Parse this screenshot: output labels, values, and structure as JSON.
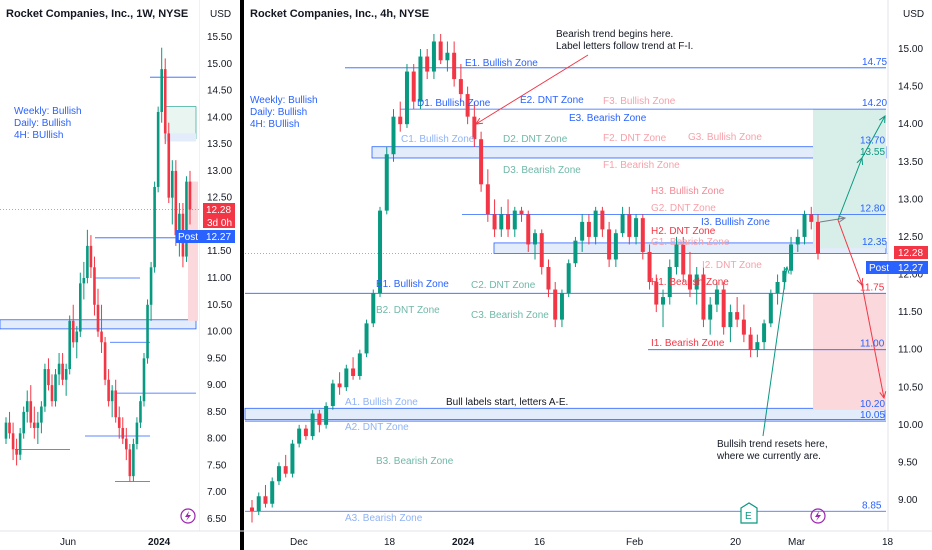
{
  "colors": {
    "up": "#089981",
    "down": "#f23645",
    "blue": "#2962ff",
    "zoneGreen": "#089981",
    "zonePink": "#f7a1a9",
    "price": "#f23645",
    "post": "#2962ff",
    "note": "#131722"
  },
  "left": {
    "title": "Rocket Companies, Inc., 1W, NYSE",
    "currency": "USD",
    "yticks": [
      "15.50",
      "15.00",
      "14.50",
      "14.00",
      "13.50",
      "13.00",
      "12.50",
      "12.00",
      "11.50",
      "11.00",
      "10.50",
      "10.00",
      "9.50",
      "9.00",
      "8.50",
      "8.00",
      "7.50",
      "7.00",
      "6.50"
    ],
    "xticks": [
      "Jun",
      "2024"
    ],
    "price_badge": "12.28",
    "countdown": "3d 0h",
    "post_label": "Post",
    "post_value": "12.27",
    "trend_notes": [
      "Weekly: Bullish",
      "Daily: Bullish",
      "4H: BUllish"
    ]
  },
  "right": {
    "title": "Rocket Companies, Inc., 4h, NYSE",
    "currency": "USD",
    "yticks": [
      "15.00",
      "14.50",
      "14.00",
      "13.50",
      "13.00",
      "12.50",
      "12.00",
      "11.50",
      "11.00",
      "10.50",
      "10.00",
      "9.50",
      "9.00"
    ],
    "xticks": [
      "Dec",
      "18",
      "2024",
      "16",
      "Feb",
      "20",
      "Mar",
      "18"
    ],
    "price_badge": "12.28",
    "post_label": "Post",
    "post_value": "12.27",
    "trend_notes": [
      "Weekly: Bullish",
      "Daily: Bullish",
      "4H: BUllish"
    ],
    "level_labels": [
      "14.75",
      "14.20",
      "13.70",
      "13.55",
      "12.80",
      "12.35",
      "11.75",
      "11.00",
      "10.20",
      "10.05",
      "8.85"
    ],
    "zone_labels": [
      {
        "id": "E1",
        "text": "E1. Bullish Zone"
      },
      {
        "id": "D1",
        "text": "D1. Bullish Zone"
      },
      {
        "id": "E2",
        "text": "E2. DNT Zone"
      },
      {
        "id": "F3",
        "text": "F3. Bullish Zone"
      },
      {
        "id": "E3",
        "text": "E3. Bearish Zone"
      },
      {
        "id": "C1",
        "text": "C1. Bullish Zone"
      },
      {
        "id": "D2",
        "text": "D2. DNT Zone"
      },
      {
        "id": "F2",
        "text": "F2. DNT Zone"
      },
      {
        "id": "G3",
        "text": "G3. Bullish Zone"
      },
      {
        "id": "F1",
        "text": "F1. Bearish Zone"
      },
      {
        "id": "D3",
        "text": "D3. Bearish Zone"
      },
      {
        "id": "H3",
        "text": "H3. Bullish Zone"
      },
      {
        "id": "G2",
        "text": "G2. DNT Zone"
      },
      {
        "id": "I3",
        "text": "I3. Bullish Zone"
      },
      {
        "id": "H2",
        "text": "H2. DNT Zone"
      },
      {
        "id": "G1",
        "text": "G1. Bearish Zone"
      },
      {
        "id": "I2",
        "text": "I2. DNT Zone"
      },
      {
        "id": "B1",
        "text": "B1. Bullish Zone"
      },
      {
        "id": "C2",
        "text": "C2. DNT Zone"
      },
      {
        "id": "H1",
        "text": "H1. Bearish Zone"
      },
      {
        "id": "B2",
        "text": "B2. DNT Zone"
      },
      {
        "id": "C3",
        "text": "C3. Bearish Zone"
      },
      {
        "id": "I1",
        "text": "I1. Bearish Zone"
      },
      {
        "id": "A1",
        "text": "A1. Bullish Zone"
      },
      {
        "id": "A2",
        "text": "A2. DNT Zone"
      },
      {
        "id": "B3",
        "text": "B3. Bearish Zone"
      },
      {
        "id": "A3",
        "text": "A3. Bearish Zone"
      }
    ],
    "notes": {
      "bearish_1": "Bearish trend begins here.",
      "bearish_2": "Label letters follow trend at F-I.",
      "bull_labels": "Bull labels start, letters A-E.",
      "reset_1": "Bullsih trend resets here,",
      "reset_2": "where we currently are."
    },
    "earnings_marker": "E"
  },
  "chart_data": [
    {
      "type": "candlestick",
      "title": "Rocket Companies, Inc., 1W, NYSE",
      "x_ticks": [
        "Jun",
        "2024"
      ],
      "ylim": [
        6.4,
        15.8
      ],
      "last_price": 12.28,
      "post_price": 12.27,
      "ohlc": [
        [
          8.0,
          8.4,
          7.9,
          8.3
        ],
        [
          8.3,
          8.5,
          8.0,
          8.1
        ],
        [
          8.1,
          8.3,
          7.6,
          7.8
        ],
        [
          7.8,
          8.0,
          7.5,
          7.7
        ],
        [
          7.7,
          8.2,
          7.6,
          8.1
        ],
        [
          8.1,
          8.6,
          8.0,
          8.5
        ],
        [
          8.5,
          8.9,
          8.3,
          8.7
        ],
        [
          8.7,
          9.0,
          8.2,
          8.3
        ],
        [
          8.3,
          8.6,
          8.0,
          8.2
        ],
        [
          8.2,
          8.5,
          7.9,
          8.3
        ],
        [
          8.3,
          8.7,
          8.1,
          8.6
        ],
        [
          8.6,
          9.4,
          8.5,
          9.3
        ],
        [
          9.3,
          9.5,
          8.9,
          9.0
        ],
        [
          9.0,
          9.2,
          8.6,
          8.7
        ],
        [
          8.7,
          9.3,
          8.6,
          9.2
        ],
        [
          9.2,
          9.6,
          9.0,
          9.4
        ],
        [
          9.4,
          9.6,
          9.0,
          9.1
        ],
        [
          9.1,
          9.4,
          8.8,
          9.3
        ],
        [
          9.3,
          10.3,
          9.2,
          10.2
        ],
        [
          10.2,
          10.5,
          9.7,
          9.8
        ],
        [
          9.8,
          10.1,
          9.5,
          10.0
        ],
        [
          10.0,
          11.1,
          9.9,
          10.9
        ],
        [
          10.9,
          11.3,
          10.6,
          11.0
        ],
        [
          11.0,
          11.9,
          10.9,
          11.6
        ],
        [
          11.6,
          11.8,
          11.0,
          11.2
        ],
        [
          11.2,
          11.4,
          10.3,
          10.5
        ],
        [
          10.5,
          10.8,
          9.9,
          10.0
        ],
        [
          10.0,
          10.5,
          9.6,
          9.8
        ],
        [
          9.8,
          9.9,
          9.0,
          9.1
        ],
        [
          9.1,
          9.3,
          8.6,
          8.7
        ],
        [
          8.7,
          9.0,
          8.4,
          8.9
        ],
        [
          8.9,
          9.1,
          8.3,
          8.4
        ],
        [
          8.4,
          8.6,
          8.0,
          8.2
        ],
        [
          8.2,
          8.4,
          7.9,
          8.0
        ],
        [
          8.0,
          8.2,
          7.6,
          7.8
        ],
        [
          7.8,
          7.9,
          7.2,
          7.3
        ],
        [
          7.3,
          8.0,
          7.2,
          7.9
        ],
        [
          7.9,
          8.4,
          7.8,
          8.3
        ],
        [
          8.3,
          8.8,
          8.2,
          8.7
        ],
        [
          8.7,
          9.6,
          8.6,
          9.5
        ],
        [
          9.5,
          10.6,
          9.4,
          10.5
        ],
        [
          10.5,
          11.3,
          10.2,
          11.2
        ],
        [
          11.2,
          12.8,
          11.1,
          12.7
        ],
        [
          12.7,
          14.2,
          12.6,
          14.1
        ],
        [
          14.1,
          15.3,
          13.9,
          14.9
        ],
        [
          14.9,
          15.1,
          13.5,
          13.7
        ],
        [
          13.7,
          13.9,
          12.4,
          12.5
        ],
        [
          12.5,
          13.2,
          12.0,
          13.0
        ],
        [
          13.0,
          13.2,
          11.6,
          11.8
        ],
        [
          11.8,
          12.4,
          11.4,
          12.2
        ],
        [
          12.2,
          12.4,
          11.2,
          11.4
        ],
        [
          11.4,
          12.9,
          11.3,
          12.8
        ],
        [
          12.8,
          13.0,
          12.0,
          12.28
        ]
      ]
    },
    {
      "type": "candlestick",
      "title": "Rocket Companies, Inc., 4h, NYSE",
      "x_ticks": [
        "Dec",
        "18",
        "2024",
        "16",
        "Feb",
        "20",
        "Mar",
        "18"
      ],
      "ylim": [
        8.65,
        15.45
      ],
      "last_price": 12.28,
      "post_price": 12.27,
      "levels": [
        14.75,
        14.2,
        13.7,
        13.55,
        12.8,
        12.35,
        11.75,
        11.0,
        10.2,
        10.05,
        8.85
      ],
      "zones": [
        {
          "name": "A1. Bullish Zone",
          "low": 10.05,
          "high": 10.2
        },
        {
          "name": "B1. Bullish Zone",
          "low": 11.75,
          "high": 11.75
        },
        {
          "name": "C1. Bullish Zone",
          "low": 13.55,
          "high": 13.7
        },
        {
          "name": "G1. Bearish Zone",
          "low": 12.28,
          "high": 12.42
        }
      ],
      "ohlc": [
        [
          8.9,
          9.0,
          8.7,
          8.85
        ],
        [
          8.85,
          9.1,
          8.8,
          9.05
        ],
        [
          9.05,
          9.2,
          8.9,
          8.95
        ],
        [
          8.95,
          9.3,
          8.9,
          9.25
        ],
        [
          9.25,
          9.5,
          9.2,
          9.45
        ],
        [
          9.45,
          9.6,
          9.3,
          9.35
        ],
        [
          9.35,
          9.8,
          9.3,
          9.75
        ],
        [
          9.75,
          10.0,
          9.7,
          9.95
        ],
        [
          9.95,
          10.0,
          9.8,
          9.85
        ],
        [
          9.85,
          10.2,
          9.8,
          10.15
        ],
        [
          10.15,
          10.2,
          9.9,
          10.0
        ],
        [
          10.0,
          10.3,
          9.95,
          10.25
        ],
        [
          10.25,
          10.6,
          10.2,
          10.55
        ],
        [
          10.55,
          10.7,
          10.4,
          10.5
        ],
        [
          10.5,
          10.8,
          10.45,
          10.75
        ],
        [
          10.75,
          10.9,
          10.6,
          10.65
        ],
        [
          10.65,
          11.0,
          10.6,
          10.95
        ],
        [
          10.95,
          11.4,
          10.9,
          11.35
        ],
        [
          11.35,
          11.8,
          11.3,
          11.75
        ],
        [
          11.75,
          12.9,
          11.7,
          12.85
        ],
        [
          12.85,
          13.7,
          12.8,
          13.6
        ],
        [
          13.6,
          14.2,
          13.5,
          14.1
        ],
        [
          14.1,
          14.3,
          13.9,
          14.0
        ],
        [
          14.0,
          14.8,
          13.95,
          14.7
        ],
        [
          14.7,
          14.8,
          14.2,
          14.3
        ],
        [
          14.3,
          15.0,
          14.2,
          14.9
        ],
        [
          14.9,
          15.0,
          14.6,
          14.7
        ],
        [
          14.7,
          15.2,
          14.6,
          15.1
        ],
        [
          15.1,
          15.2,
          14.8,
          14.85
        ],
        [
          14.85,
          15.1,
          14.7,
          14.95
        ],
        [
          14.95,
          15.1,
          14.5,
          14.6
        ],
        [
          14.6,
          14.8,
          14.3,
          14.4
        ],
        [
          14.4,
          14.5,
          14.0,
          14.1
        ],
        [
          14.1,
          14.3,
          13.7,
          13.8
        ],
        [
          13.8,
          13.9,
          13.1,
          13.2
        ],
        [
          13.2,
          13.4,
          12.7,
          12.8
        ],
        [
          12.8,
          13.0,
          12.5,
          12.6
        ],
        [
          12.6,
          12.9,
          12.5,
          12.8
        ],
        [
          12.8,
          13.0,
          12.5,
          12.6
        ],
        [
          12.6,
          12.9,
          12.5,
          12.85
        ],
        [
          12.85,
          12.9,
          12.7,
          12.8
        ],
        [
          12.8,
          12.85,
          12.3,
          12.4
        ],
        [
          12.4,
          12.6,
          12.2,
          12.55
        ],
        [
          12.55,
          12.6,
          12.0,
          12.1
        ],
        [
          12.1,
          12.2,
          11.7,
          11.8
        ],
        [
          11.8,
          11.9,
          11.3,
          11.4
        ],
        [
          11.4,
          11.8,
          11.3,
          11.75
        ],
        [
          11.75,
          12.2,
          11.7,
          12.15
        ],
        [
          12.15,
          12.5,
          12.1,
          12.45
        ],
        [
          12.45,
          12.8,
          12.3,
          12.7
        ],
        [
          12.7,
          12.8,
          12.4,
          12.5
        ],
        [
          12.5,
          12.9,
          12.4,
          12.85
        ],
        [
          12.85,
          12.9,
          12.5,
          12.6
        ],
        [
          12.6,
          12.7,
          12.1,
          12.2
        ],
        [
          12.2,
          12.6,
          12.1,
          12.55
        ],
        [
          12.55,
          12.9,
          12.5,
          12.8
        ],
        [
          12.8,
          12.9,
          12.4,
          12.5
        ],
        [
          12.5,
          12.8,
          12.4,
          12.75
        ],
        [
          12.75,
          12.8,
          12.2,
          12.3
        ],
        [
          12.3,
          12.4,
          11.8,
          11.9
        ],
        [
          11.9,
          12.0,
          11.5,
          11.6
        ],
        [
          11.6,
          11.8,
          11.3,
          11.7
        ],
        [
          11.7,
          12.2,
          11.6,
          12.1
        ],
        [
          12.1,
          12.5,
          12.0,
          12.4
        ],
        [
          12.4,
          12.5,
          11.9,
          12.0
        ],
        [
          12.0,
          12.3,
          11.7,
          11.8
        ],
        [
          11.8,
          12.1,
          11.6,
          12.0
        ],
        [
          12.0,
          12.1,
          11.3,
          11.4
        ],
        [
          11.4,
          11.7,
          11.2,
          11.6
        ],
        [
          11.6,
          11.9,
          11.5,
          11.8
        ],
        [
          11.8,
          11.9,
          11.2,
          11.3
        ],
        [
          11.3,
          11.6,
          11.1,
          11.5
        ],
        [
          11.5,
          11.7,
          11.3,
          11.4
        ],
        [
          11.4,
          11.6,
          11.1,
          11.2
        ],
        [
          11.2,
          11.3,
          10.9,
          11.0
        ],
        [
          11.0,
          11.2,
          10.9,
          11.1
        ],
        [
          11.1,
          11.4,
          11.0,
          11.35
        ],
        [
          11.35,
          11.8,
          11.3,
          11.75
        ],
        [
          11.75,
          12.0,
          11.6,
          11.9
        ],
        [
          11.9,
          12.1,
          11.8,
          12.05
        ],
        [
          12.05,
          12.5,
          12.0,
          12.4
        ],
        [
          12.4,
          12.6,
          12.3,
          12.5
        ],
        [
          12.5,
          12.85,
          12.4,
          12.8
        ],
        [
          12.8,
          12.9,
          12.6,
          12.7
        ],
        [
          12.7,
          12.8,
          12.2,
          12.28
        ]
      ]
    }
  ]
}
